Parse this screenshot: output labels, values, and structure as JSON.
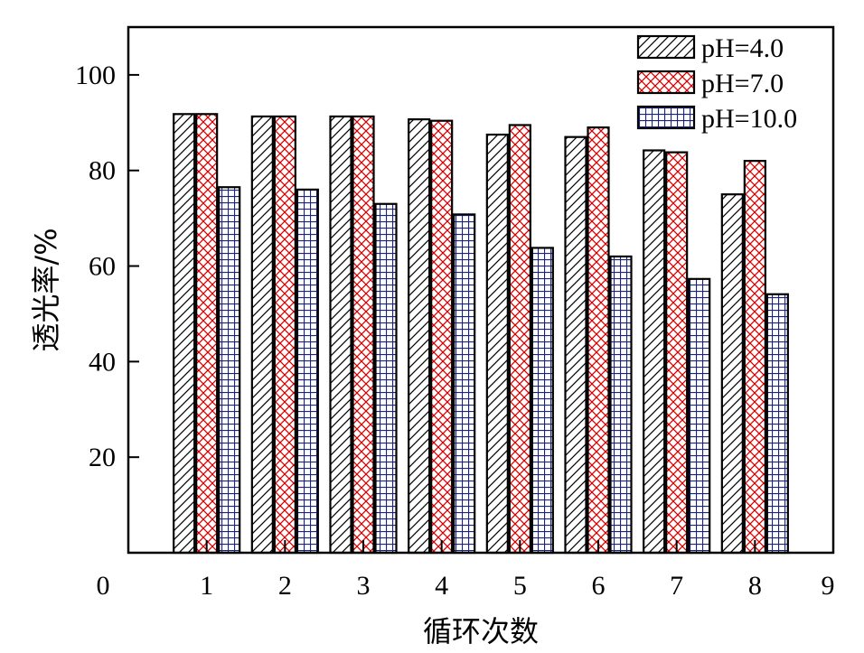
{
  "chart_data": {
    "type": "bar",
    "title": "",
    "xlabel": "循环次数",
    "ylabel": "透光率/%",
    "categories": [
      "1",
      "2",
      "3",
      "4",
      "5",
      "6",
      "7",
      "8"
    ],
    "x_ticks": [
      "0",
      "1",
      "2",
      "3",
      "4",
      "5",
      "6",
      "7",
      "8",
      "9"
    ],
    "y_ticks": [
      "20",
      "40",
      "60",
      "80",
      "100"
    ],
    "xlim": [
      0,
      9
    ],
    "ylim": [
      0,
      110
    ],
    "grid": false,
    "legend_position": "top-right",
    "series": [
      {
        "name": "pH=4.0",
        "values": [
          91.8,
          91.3,
          91.3,
          90.7,
          87.5,
          87.0,
          84.2,
          75.0
        ],
        "color": "#000000",
        "pattern": "diagonal-hatch"
      },
      {
        "name": "pH=7.0",
        "values": [
          91.8,
          91.3,
          91.3,
          90.4,
          89.5,
          89.0,
          83.8,
          82.0
        ],
        "color": "#cc0000",
        "pattern": "crosshatch"
      },
      {
        "name": "pH=10.0",
        "values": [
          76.5,
          76.0,
          73.0,
          70.8,
          63.8,
          62.0,
          57.3,
          54.1
        ],
        "color": "#1a237e",
        "pattern": "grid"
      }
    ]
  }
}
